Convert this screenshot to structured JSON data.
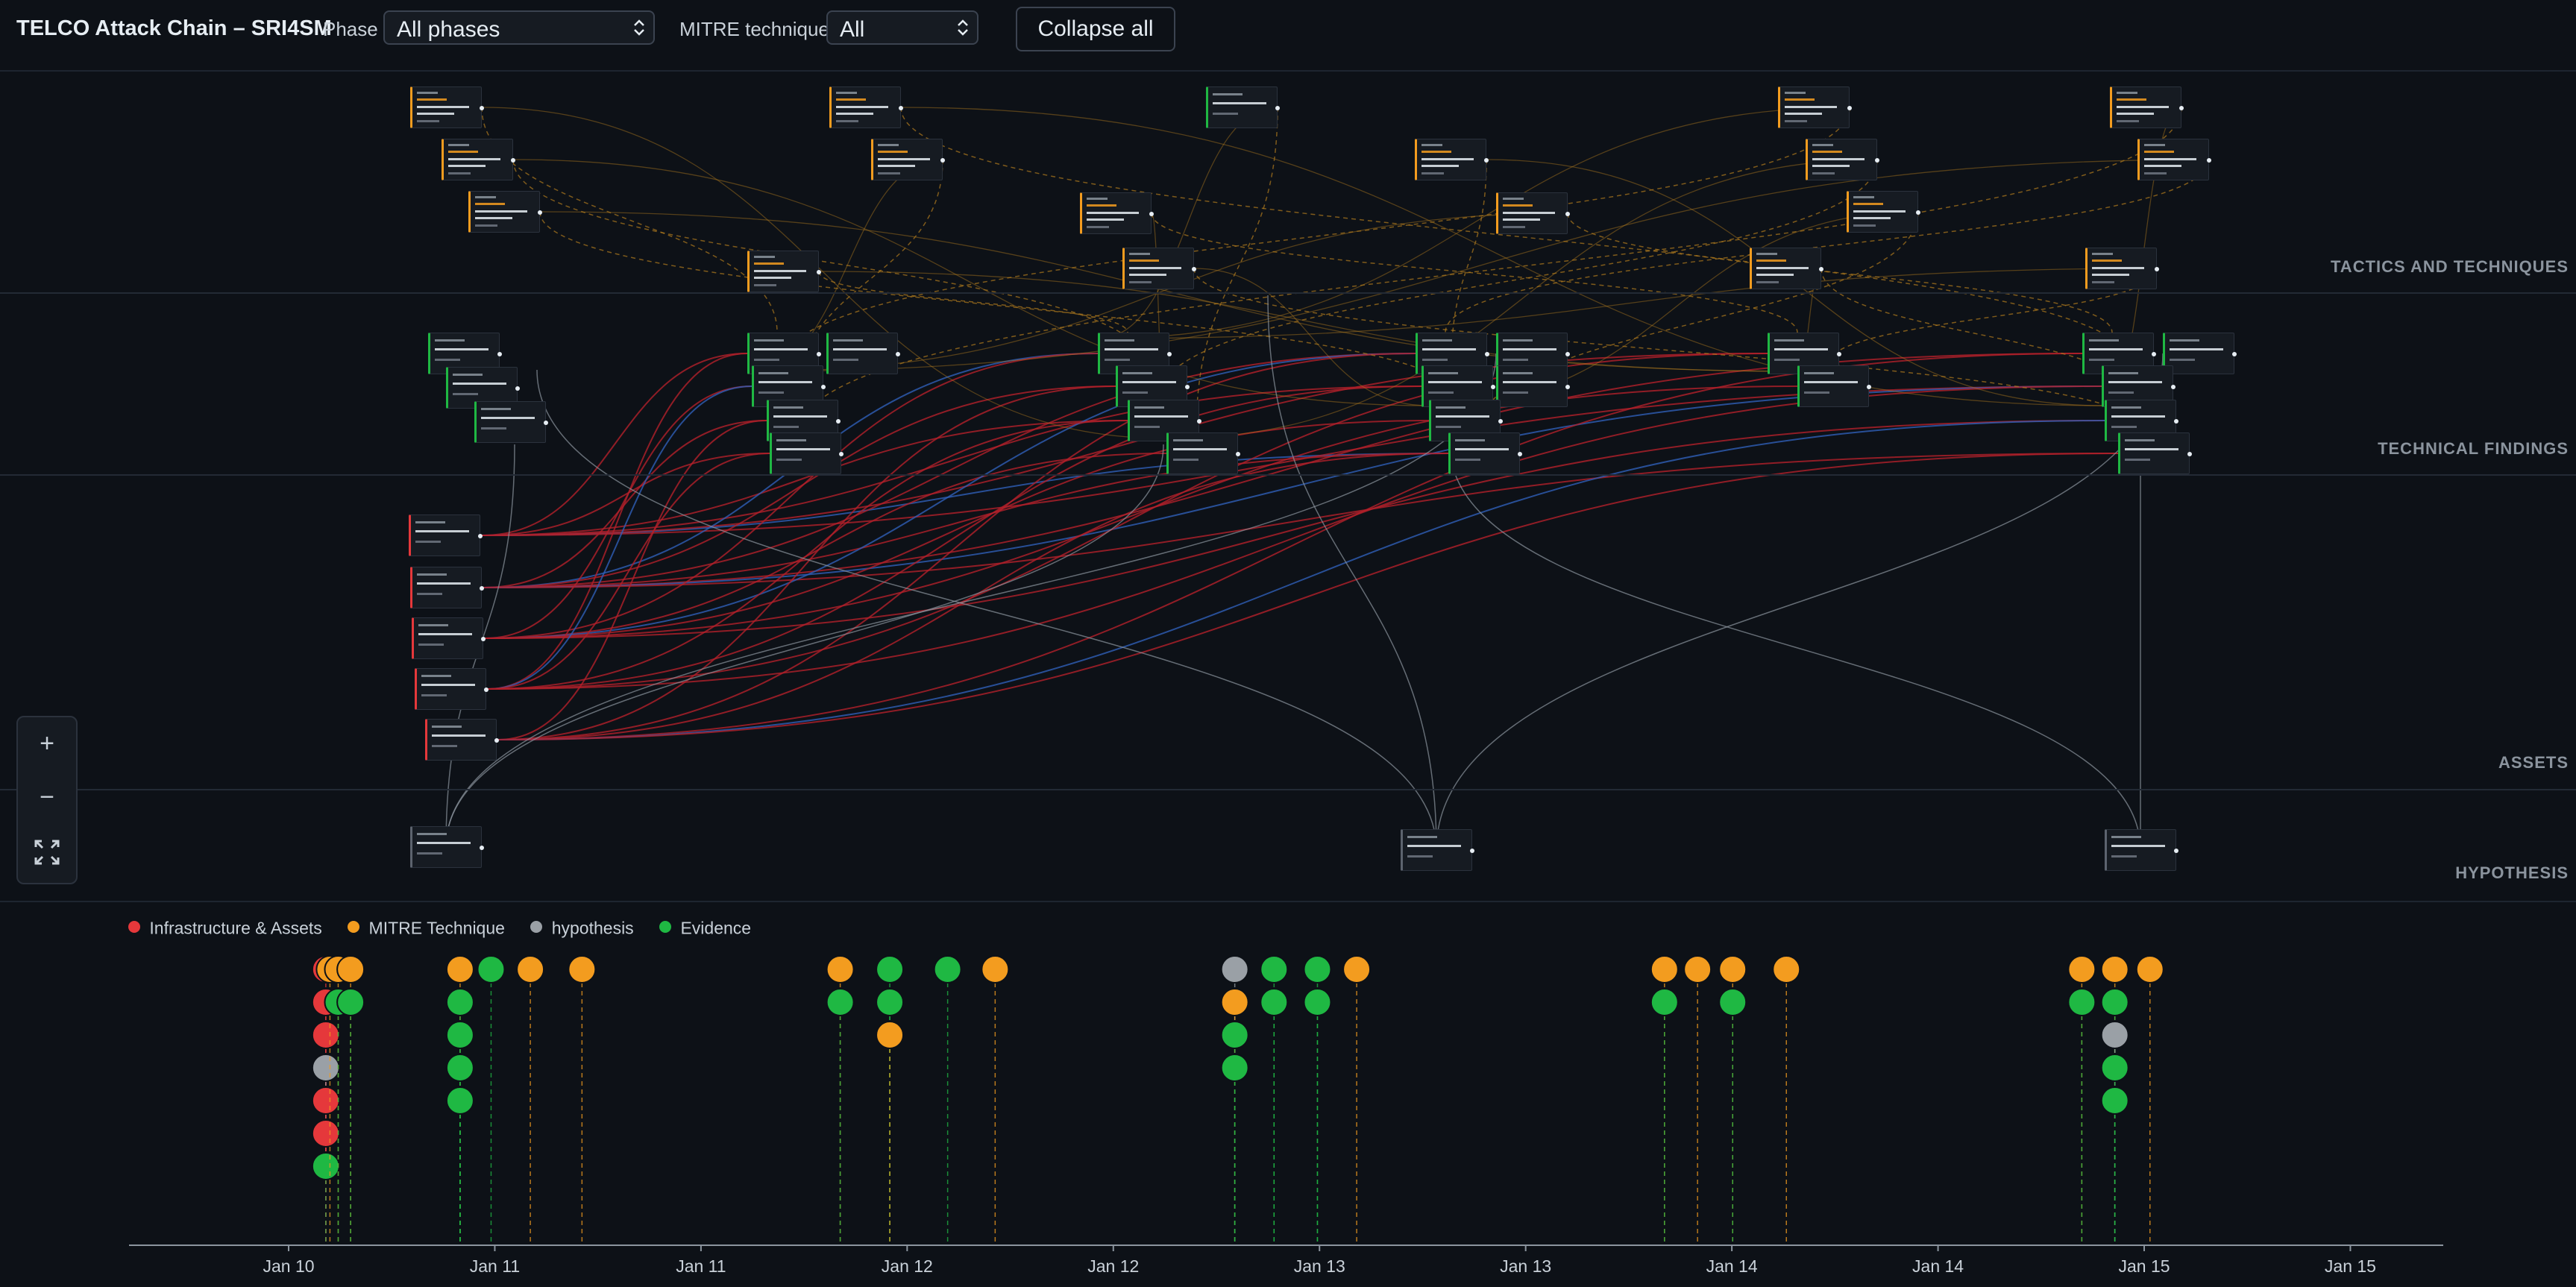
{
  "header": {
    "title": "TELCO Attack Chain – SRI4SM",
    "phase_label": "Phase",
    "phase_value": "All phases",
    "technique_label": "MITRE technique",
    "technique_value": "All",
    "collapse_label": "Collapse all"
  },
  "lanes": [
    {
      "id": "tactics",
      "label": "TACTICS AND TECHNIQUES"
    },
    {
      "id": "findings",
      "label": "TECHNICAL FINDINGS"
    },
    {
      "id": "assets",
      "label": "ASSETS"
    },
    {
      "id": "hypothesis",
      "label": "HYPOTHESIS"
    }
  ],
  "zoom_controls": {
    "zoom_in": "+",
    "zoom_out": "−"
  },
  "legend": [
    {
      "label": "Infrastructure & Assets",
      "color": "#e5383b"
    },
    {
      "label": "MITRE Technique",
      "color": "#f39c1f"
    },
    {
      "label": "hypothesis",
      "color": "#9aa0a6"
    },
    {
      "label": "Evidence",
      "color": "#1fb843"
    }
  ],
  "colors": {
    "red": "#e5383b",
    "orange": "#f39c1f",
    "gray": "#9aa0a6",
    "green": "#1fb843",
    "edge_red": "#b3202a",
    "edge_blue": "#2f5fb8",
    "edge_orange": "#b07a1e",
    "edge_gray": "#8b949e"
  },
  "timeline": {
    "ticks": [
      "Jan 10",
      "Jan 11",
      "Jan 11",
      "Jan 12",
      "Jan 12",
      "Jan 13",
      "Jan 13",
      "Jan 14",
      "Jan 14",
      "Jan 15",
      "Jan 15"
    ],
    "columns": [
      {
        "t": 0.18,
        "events": [
          "red",
          "red",
          "red",
          "gray",
          "red",
          "red",
          "green"
        ]
      },
      {
        "t": 0.2,
        "events": [
          "orange"
        ]
      },
      {
        "t": 0.24,
        "events": [
          "orange",
          "green"
        ]
      },
      {
        "t": 0.3,
        "events": [
          "orange",
          "green"
        ]
      },
      {
        "t": 0.83,
        "events": [
          "orange",
          "green",
          "green",
          "green",
          "green"
        ]
      },
      {
        "t": 0.98,
        "events": [
          "green"
        ]
      },
      {
        "t": 1.17,
        "events": [
          "orange"
        ]
      },
      {
        "t": 1.42,
        "events": [
          "orange"
        ]
      },
      {
        "t": 2.67,
        "events": [
          "orange",
          "green"
        ]
      },
      {
        "t": 2.91,
        "events": [
          "green",
          "green",
          "orange"
        ]
      },
      {
        "t": 3.19,
        "events": [
          "green"
        ]
      },
      {
        "t": 3.42,
        "events": [
          "orange"
        ]
      },
      {
        "t": 4.58,
        "events": [
          "gray",
          "orange",
          "green",
          "green"
        ]
      },
      {
        "t": 4.77,
        "events": [
          "green",
          "green"
        ]
      },
      {
        "t": 4.98,
        "events": [
          "green",
          "green"
        ]
      },
      {
        "t": 5.17,
        "events": [
          "orange"
        ]
      },
      {
        "t": 6.66,
        "events": [
          "orange",
          "green"
        ]
      },
      {
        "t": 6.82,
        "events": [
          "orange"
        ]
      },
      {
        "t": 6.99,
        "events": [
          "orange",
          "green"
        ]
      },
      {
        "t": 7.25,
        "events": [
          "orange"
        ]
      },
      {
        "t": 8.68,
        "events": [
          "orange",
          "green"
        ]
      },
      {
        "t": 8.84,
        "events": [
          "orange",
          "green",
          "gray",
          "green",
          "green"
        ]
      },
      {
        "t": 9.01,
        "events": [
          "orange"
        ]
      }
    ]
  }
}
